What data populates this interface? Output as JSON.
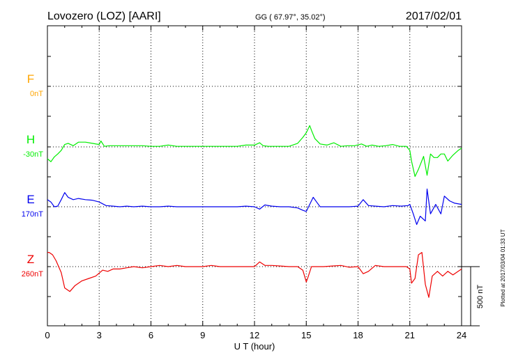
{
  "header": {
    "station": "Lovozero (LOZ)  [AARI]",
    "coords": "GG ( 67.97°,  35.02°)",
    "date": "2017/02/01"
  },
  "footer": {
    "plotted": "Plotted at 2017/03/04 01:33 UT"
  },
  "scale": {
    "label": "500 nT",
    "value_nT": 500
  },
  "colors": {
    "F": "#ffa500",
    "H": "#00ee00",
    "E": "#0000ee",
    "Z": "#ee0000",
    "grid": "#000000"
  },
  "chart_data": {
    "type": "line",
    "xlabel": "U T (hour)",
    "xlim": [
      0,
      24
    ],
    "xticks": [
      "0",
      "3",
      "6",
      "9",
      "12",
      "15",
      "18",
      "21",
      "24"
    ],
    "grid": true,
    "series": [
      {
        "key": "F",
        "name": "F",
        "baseline": "0nT",
        "values_x": [],
        "values_y": []
      },
      {
        "key": "H",
        "name": "H",
        "baseline": "-30nT",
        "x": [
          0,
          0.2,
          0.4,
          0.6,
          0.8,
          1.0,
          1.2,
          1.5,
          1.8,
          2.2,
          2.6,
          3.0,
          3.1,
          3.3,
          3.6,
          4.0,
          4.5,
          5.0,
          5.5,
          6.0,
          6.5,
          7.0,
          7.5,
          8.0,
          8.5,
          9.0,
          9.5,
          10.0,
          10.5,
          11.0,
          11.5,
          12.0,
          12.3,
          12.5,
          12.8,
          13.2,
          13.6,
          14.0,
          14.5,
          14.8,
          15.0,
          15.2,
          15.3,
          15.5,
          15.8,
          16.2,
          16.6,
          17.0,
          17.4,
          17.8,
          18.2,
          18.5,
          18.8,
          19.2,
          19.6,
          20.0,
          20.4,
          20.8,
          21.0,
          21.1,
          21.3,
          21.5,
          21.8,
          22.0,
          22.2,
          22.4,
          22.6,
          22.8,
          23.0,
          23.2,
          23.5,
          23.8,
          24.0
        ],
        "y": [
          -100,
          -125,
          -85,
          -60,
          -30,
          20,
          30,
          10,
          40,
          40,
          30,
          20,
          50,
          5,
          10,
          10,
          10,
          10,
          10,
          5,
          5,
          15,
          5,
          5,
          5,
          5,
          5,
          5,
          5,
          5,
          15,
          15,
          35,
          10,
          5,
          5,
          5,
          5,
          30,
          80,
          120,
          180,
          140,
          70,
          25,
          15,
          35,
          5,
          10,
          10,
          25,
          5,
          15,
          5,
          10,
          20,
          5,
          5,
          -30,
          -120,
          -250,
          -190,
          -80,
          -240,
          -60,
          -90,
          -90,
          -60,
          -60,
          -120,
          -70,
          -30,
          -10
        ]
      },
      {
        "key": "E",
        "name": "E",
        "baseline": "170nT",
        "x": [
          0,
          0.2,
          0.4,
          0.6,
          0.8,
          1.0,
          1.2,
          1.5,
          1.8,
          2.2,
          2.6,
          3.0,
          3.4,
          3.8,
          4.2,
          4.6,
          5.0,
          5.5,
          6.0,
          6.5,
          7.0,
          7.5,
          8.0,
          8.5,
          9.0,
          9.5,
          10.0,
          10.5,
          11.0,
          11.5,
          12.0,
          12.3,
          12.6,
          13.0,
          13.5,
          14.0,
          14.5,
          14.8,
          15.0,
          15.2,
          15.4,
          15.6,
          15.8,
          16.2,
          16.6,
          17.0,
          17.5,
          18.0,
          18.3,
          18.6,
          19.0,
          19.5,
          20.0,
          20.5,
          20.9,
          21.0,
          21.2,
          21.4,
          21.6,
          21.9,
          22.0,
          22.2,
          22.5,
          22.8,
          23.0,
          23.3,
          23.6,
          24.0
        ],
        "y": [
          60,
          40,
          0,
          5,
          60,
          120,
          80,
          60,
          70,
          60,
          55,
          40,
          10,
          5,
          0,
          5,
          0,
          5,
          0,
          0,
          5,
          0,
          0,
          0,
          0,
          0,
          0,
          0,
          0,
          5,
          0,
          -20,
          15,
          5,
          0,
          0,
          -10,
          -30,
          -40,
          20,
          80,
          40,
          0,
          0,
          0,
          0,
          0,
          5,
          60,
          10,
          5,
          0,
          10,
          5,
          10,
          20,
          -60,
          -150,
          -80,
          -120,
          150,
          -60,
          20,
          -60,
          90,
          50,
          30,
          20
        ]
      },
      {
        "key": "Z",
        "name": "Z",
        "baseline": "260nT",
        "x": [
          0,
          0.1,
          0.3,
          0.5,
          0.8,
          1.0,
          1.3,
          1.6,
          2.0,
          2.4,
          2.8,
          3.2,
          3.5,
          3.8,
          4.2,
          4.6,
          5.0,
          5.5,
          6.0,
          6.5,
          7.0,
          7.5,
          8.0,
          8.5,
          9.0,
          9.5,
          10.0,
          10.5,
          11.0,
          11.5,
          12.0,
          12.3,
          12.6,
          13.0,
          13.5,
          14.0,
          14.5,
          14.8,
          15.0,
          15.1,
          15.3,
          15.6,
          16.0,
          16.5,
          17.0,
          17.5,
          18.0,
          18.3,
          18.6,
          19.0,
          19.5,
          20.0,
          20.5,
          20.8,
          21.0,
          21.1,
          21.3,
          21.5,
          21.7,
          21.9,
          22.1,
          22.3,
          22.6,
          22.9,
          23.2,
          23.5,
          24.0
        ],
        "y": [
          120,
          120,
          100,
          50,
          -50,
          -180,
          -210,
          -160,
          -120,
          -100,
          -80,
          -30,
          -40,
          -20,
          -20,
          -10,
          0,
          -10,
          0,
          10,
          0,
          10,
          0,
          0,
          0,
          10,
          0,
          0,
          0,
          0,
          0,
          40,
          10,
          10,
          5,
          0,
          0,
          -30,
          -130,
          -90,
          0,
          0,
          0,
          5,
          10,
          -5,
          0,
          -60,
          -40,
          10,
          0,
          0,
          0,
          0,
          -20,
          -140,
          -100,
          100,
          120,
          -150,
          -260,
          -80,
          -40,
          -80,
          -40,
          -70,
          -20
        ]
      }
    ]
  }
}
